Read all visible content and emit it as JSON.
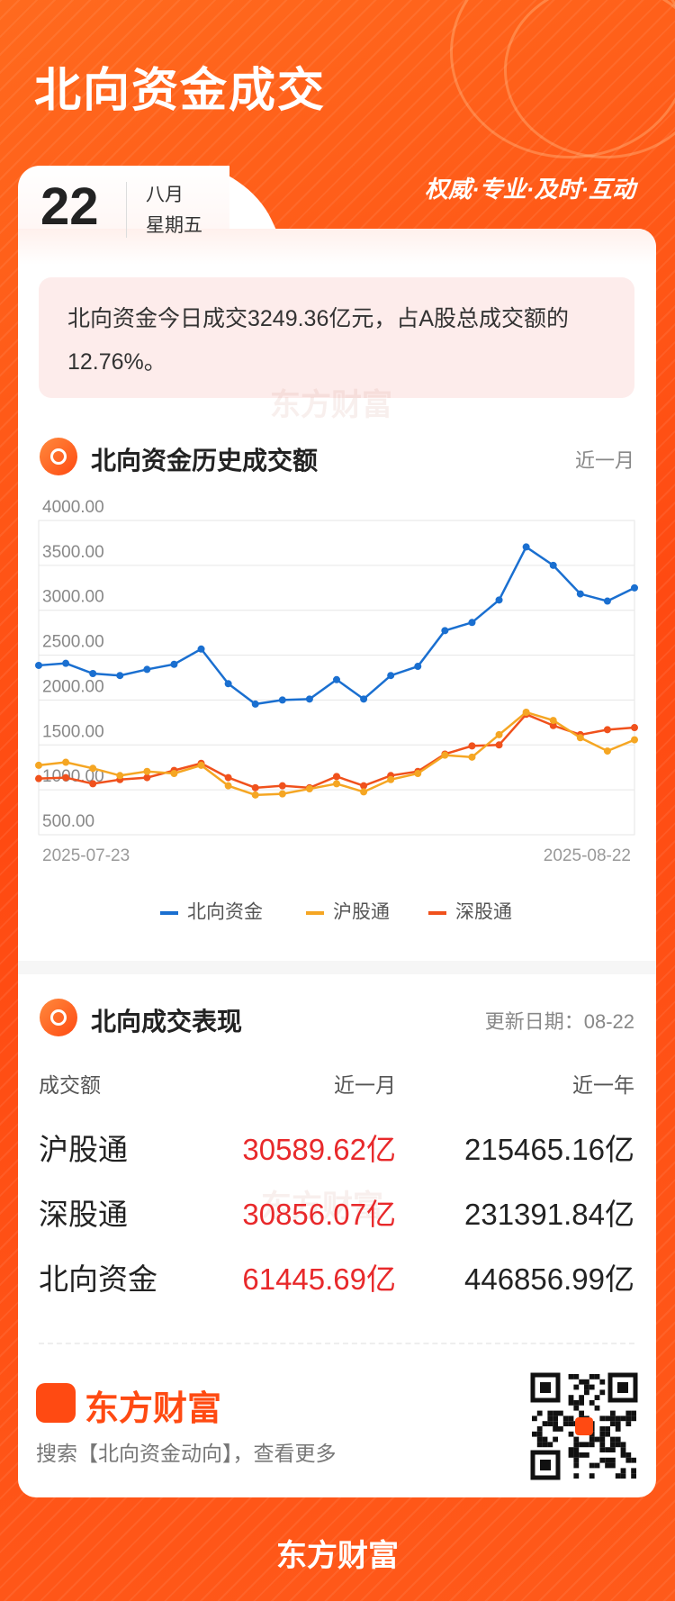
{
  "header": {
    "title": "北向资金成交",
    "day": "22",
    "month": "八月",
    "weekday": "星期五",
    "slogan": "权威·专业·及时·互动"
  },
  "summary": "北向资金今日成交3249.36亿元，占A股总成交额的12.76%。",
  "watermark": "东方财富",
  "chart_section": {
    "title": "北向资金历史成交额",
    "period": "近一月"
  },
  "chart_data": {
    "type": "line",
    "categories": [
      "2025-07-23",
      null,
      null,
      null,
      null,
      null,
      null,
      null,
      null,
      null,
      null,
      null,
      null,
      null,
      null,
      null,
      null,
      null,
      null,
      null,
      null,
      null,
      "2025-08-22"
    ],
    "series": [
      {
        "name": "北向资金",
        "color": "#1a6fd0",
        "values": [
          2386,
          2409,
          2295,
          2273,
          2341,
          2398,
          2568,
          2182,
          1955,
          2000,
          2011,
          2227,
          2011,
          2273,
          2375,
          2773,
          2864,
          3114,
          3705,
          3500,
          3182,
          3102,
          3249.36
        ]
      },
      {
        "name": "沪股通",
        "color": "#f5a623",
        "values": [
          1273,
          1307,
          1239,
          1159,
          1205,
          1182,
          1273,
          1045,
          943,
          955,
          1011,
          1068,
          977,
          1114,
          1182,
          1386,
          1364,
          1614,
          1864,
          1773,
          1580,
          1432,
          1557
        ]
      },
      {
        "name": "深股通",
        "color": "#f0511c",
        "values": [
          1125,
          1136,
          1068,
          1114,
          1136,
          1216,
          1295,
          1136,
          1023,
          1045,
          1023,
          1148,
          1045,
          1159,
          1205,
          1398,
          1489,
          1500,
          1841,
          1716,
          1614,
          1670,
          1693
        ]
      }
    ],
    "ylim": [
      500,
      4000
    ],
    "yticks": [
      {
        "value": 500,
        "label": "500.00"
      },
      {
        "value": 1000,
        "label": "1000.00"
      },
      {
        "value": 1500,
        "label": "1500.00"
      },
      {
        "value": 2000,
        "label": "2000.00"
      },
      {
        "value": 2500,
        "label": "2500.00"
      },
      {
        "value": 3000,
        "label": "3000.00"
      },
      {
        "value": 3500,
        "label": "3500.00"
      },
      {
        "value": 4000,
        "label": "4000.00"
      }
    ],
    "grid": true
  },
  "table_section": {
    "title": "北向成交表现",
    "update": "更新日期：08-22"
  },
  "table": {
    "columns": [
      "成交额",
      "近一月",
      "近一年"
    ],
    "rows": [
      [
        "沪股通",
        "30589.62亿",
        "215465.16亿"
      ],
      [
        "深股通",
        "30856.07亿",
        "231391.84亿"
      ],
      [
        "北向资金",
        "61445.69亿",
        "446856.99亿"
      ]
    ]
  },
  "footer": {
    "brand": "东方财富",
    "search": "搜索【北向资金动向】，查看更多",
    "bottom_brand": "东方财富"
  }
}
